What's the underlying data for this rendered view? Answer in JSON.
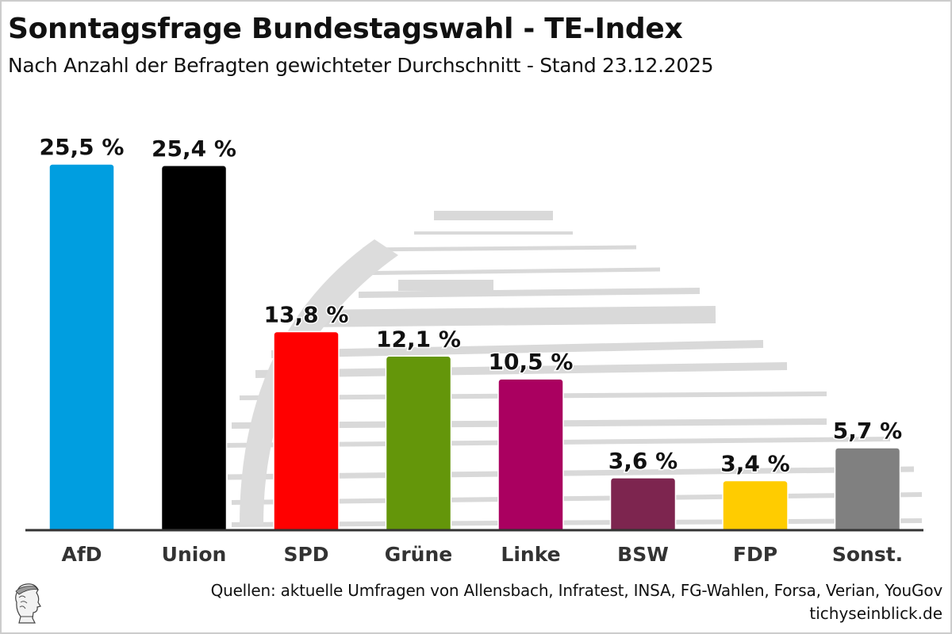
{
  "header": {
    "title": "Sonntagsfrage Bundestagswahl - TE-Index",
    "subtitle": "Nach Anzahl der Befragten gewichteter Durchschnitt - Stand 23.12.2025"
  },
  "footer": {
    "sources": "Quellen: aktuelle Umfragen von Allensbach, Infratest, INSA, FG-Wahlen, Forsa, Verian, YouGov",
    "site": "tichyseinblick.de",
    "logo_icon": "hermes-head-logo-icon"
  },
  "chart_data": {
    "type": "bar",
    "title": "Sonntagsfrage Bundestagswahl - TE-Index",
    "subtitle": "Nach Anzahl der Befragten gewichteter Durchschnitt - Stand 23.12.2025",
    "xlabel": "",
    "ylabel": "",
    "ylim": [
      0,
      25.5
    ],
    "grid": false,
    "legend": "none",
    "categories": [
      "AfD",
      "Union",
      "SPD",
      "Grüne",
      "Linke",
      "BSW",
      "FDP",
      "Sonst."
    ],
    "values": [
      25.5,
      25.4,
      13.8,
      12.1,
      10.5,
      3.6,
      3.4,
      5.7
    ],
    "labels": [
      "25,5 %",
      "25,4 %",
      "13,8 %",
      "12,1 %",
      "10,5 %",
      "3,6 %",
      "3,4 %",
      "5,7 %"
    ],
    "colors": [
      "#009ee0",
      "#000000",
      "#ff0000",
      "#64960a",
      "#aa0060",
      "#7d254f",
      "#ffcc00",
      "#808080"
    ]
  }
}
